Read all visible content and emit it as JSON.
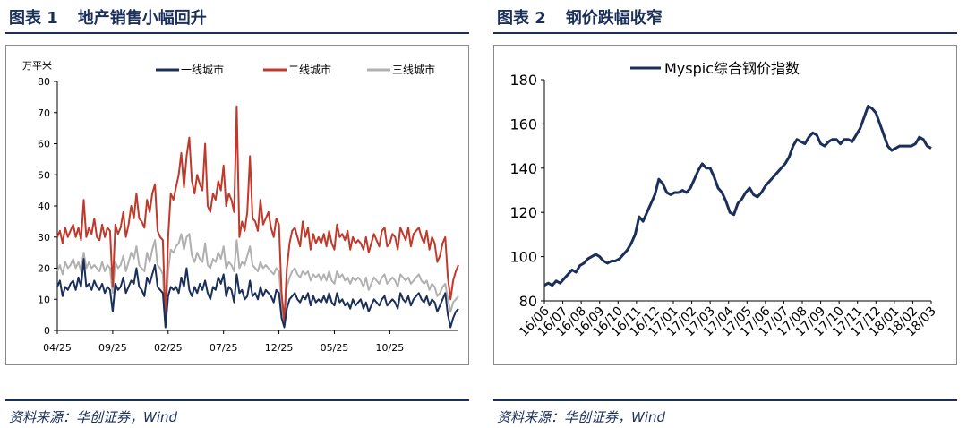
{
  "figures": [
    {
      "label": "图表 1",
      "title": "地产销售小幅回升",
      "source": "资料来源：华创证券，Wind"
    },
    {
      "label": "图表 2",
      "title": "钢价跌幅收窄",
      "source": "资料来源：华创证券，Wind"
    }
  ],
  "colors": {
    "navy": "#1a2f5a",
    "red": "#c0392b",
    "gray": "#b0b0b0"
  },
  "chart_data": [
    {
      "type": "line",
      "title": "",
      "unit": "万平米",
      "ylim": [
        0,
        80
      ],
      "yticks": [
        0,
        10,
        20,
        30,
        40,
        50,
        60,
        70,
        80
      ],
      "xlabels": [
        "04/25",
        "09/25",
        "02/25",
        "07/25",
        "12/25",
        "05/25",
        "10/25"
      ],
      "xlabel_positions": [
        0,
        21,
        42,
        63,
        84,
        105,
        126
      ],
      "legend_position": "top",
      "grid": false,
      "series": [
        {
          "name": "一线城市",
          "color": "#1a2f5a",
          "values": [
            14,
            16,
            11,
            14,
            13,
            15,
            16,
            13,
            17,
            14,
            23,
            14,
            15,
            13,
            16,
            14,
            13,
            15,
            12,
            14,
            13,
            6,
            15,
            13,
            14,
            17,
            12,
            14,
            16,
            15,
            20,
            14,
            13,
            11,
            17,
            15,
            18,
            21,
            14,
            13,
            12,
            1,
            11,
            14,
            13,
            14,
            12,
            17,
            14,
            20,
            13,
            11,
            14,
            12,
            15,
            13,
            16,
            12,
            10,
            14,
            13,
            17,
            15,
            18,
            11,
            14,
            13,
            9,
            18,
            12,
            13,
            10,
            11,
            16,
            11,
            12,
            10,
            14,
            11,
            13,
            12,
            11,
            9,
            13,
            12,
            4,
            1,
            7,
            10,
            11,
            12,
            10,
            9,
            11,
            10,
            12,
            8,
            11,
            9,
            10,
            9,
            11,
            9,
            12,
            9,
            8,
            12,
            9,
            10,
            8,
            9,
            7,
            10,
            8,
            9,
            10,
            7,
            9,
            6,
            8,
            10,
            9,
            8,
            10,
            11,
            8,
            9,
            10,
            9,
            7,
            12,
            10,
            9,
            11,
            8,
            10,
            11,
            12,
            10,
            9,
            11,
            8,
            10,
            9,
            6,
            8,
            10,
            12,
            5,
            1,
            4,
            6,
            7
          ]
        },
        {
          "name": "二线城市",
          "color": "#c0392b",
          "values": [
            30,
            32,
            28,
            33,
            30,
            32,
            34,
            30,
            33,
            29,
            42,
            30,
            33,
            31,
            36,
            30,
            29,
            34,
            30,
            33,
            32,
            14,
            34,
            31,
            33,
            38,
            30,
            34,
            40,
            36,
            44,
            36,
            35,
            33,
            42,
            38,
            44,
            47,
            32,
            30,
            29,
            3,
            30,
            44,
            42,
            46,
            50,
            57,
            46,
            56,
            62,
            48,
            44,
            50,
            47,
            45,
            60,
            40,
            38,
            44,
            42,
            48,
            45,
            53,
            40,
            44,
            42,
            38,
            72,
            30,
            35,
            32,
            38,
            56,
            36,
            35,
            32,
            42,
            34,
            36,
            38,
            33,
            30,
            36,
            34,
            12,
            3,
            20,
            28,
            32,
            33,
            30,
            27,
            35,
            30,
            33,
            26,
            31,
            28,
            30,
            28,
            31,
            27,
            32,
            28,
            26,
            34,
            30,
            31,
            29,
            32,
            26,
            30,
            28,
            29,
            28,
            26,
            30,
            25,
            28,
            31,
            29,
            27,
            32,
            33,
            27,
            28,
            31,
            30,
            26,
            33,
            31,
            29,
            33,
            27,
            31,
            32,
            33,
            30,
            28,
            32,
            26,
            30,
            28,
            22,
            24,
            28,
            30,
            17,
            10,
            16,
            19,
            21
          ]
        },
        {
          "name": "三线城市",
          "color": "#b0b0b0",
          "values": [
            19,
            21,
            18,
            22,
            20,
            21,
            23,
            20,
            22,
            19,
            25,
            20,
            22,
            20,
            21,
            20,
            19,
            22,
            19,
            21,
            20,
            12,
            22,
            20,
            21,
            24,
            19,
            22,
            25,
            23,
            27,
            21,
            20,
            19,
            25,
            22,
            26,
            29,
            21,
            20,
            18,
            1,
            19,
            26,
            25,
            27,
            28,
            31,
            26,
            30,
            31,
            24,
            22,
            25,
            23,
            22,
            28,
            21,
            20,
            23,
            22,
            25,
            23,
            27,
            20,
            22,
            21,
            19,
            29,
            20,
            22,
            21,
            24,
            27,
            21,
            20,
            19,
            22,
            20,
            21,
            20,
            19,
            18,
            20,
            19,
            8,
            2,
            14,
            17,
            19,
            20,
            18,
            17,
            19,
            18,
            19,
            16,
            18,
            17,
            18,
            16,
            18,
            16,
            19,
            16,
            15,
            19,
            17,
            18,
            16,
            17,
            15,
            17,
            16,
            17,
            16,
            14,
            17,
            13,
            15,
            17,
            16,
            15,
            17,
            18,
            15,
            16,
            17,
            16,
            14,
            18,
            17,
            16,
            17,
            15,
            16,
            17,
            18,
            16,
            15,
            16,
            13,
            15,
            14,
            11,
            12,
            14,
            15,
            10,
            6,
            9,
            10,
            11
          ]
        }
      ]
    },
    {
      "type": "line",
      "title": "",
      "ylim": [
        80,
        180
      ],
      "yticks": [
        80,
        100,
        120,
        140,
        160,
        180
      ],
      "xlabels": [
        "16/06",
        "16/07",
        "16/08",
        "16/09",
        "16/10",
        "16/11",
        "16/12",
        "17/01",
        "17/02",
        "17/03",
        "17/04",
        "17/05",
        "17/06",
        "17/07",
        "17/08",
        "17/09",
        "17/10",
        "17/11",
        "17/12",
        "18/01",
        "18/02",
        "18/03"
      ],
      "legend_position": "top",
      "grid": false,
      "series": [
        {
          "name": "Myspic综合钢价指数",
          "color": "#1a2f5a",
          "values": [
            87,
            88,
            87,
            89,
            88,
            90,
            92,
            94,
            93,
            96,
            97,
            99,
            100,
            101,
            100,
            98,
            97,
            98,
            98,
            99,
            101,
            103,
            106,
            110,
            118,
            116,
            120,
            124,
            128,
            135,
            133,
            129,
            128,
            129,
            129,
            130,
            129,
            131,
            135,
            139,
            142,
            140,
            140,
            136,
            131,
            129,
            125,
            120,
            119,
            124,
            126,
            129,
            131,
            128,
            127,
            129,
            132,
            134,
            136,
            138,
            140,
            142,
            145,
            150,
            153,
            152,
            151,
            154,
            156,
            155,
            151,
            150,
            152,
            153,
            153,
            151,
            153,
            153,
            152,
            155,
            158,
            163,
            168,
            167,
            165,
            160,
            155,
            150,
            148,
            149,
            150,
            150,
            150,
            150,
            151,
            154,
            153,
            150,
            149
          ]
        }
      ]
    }
  ]
}
